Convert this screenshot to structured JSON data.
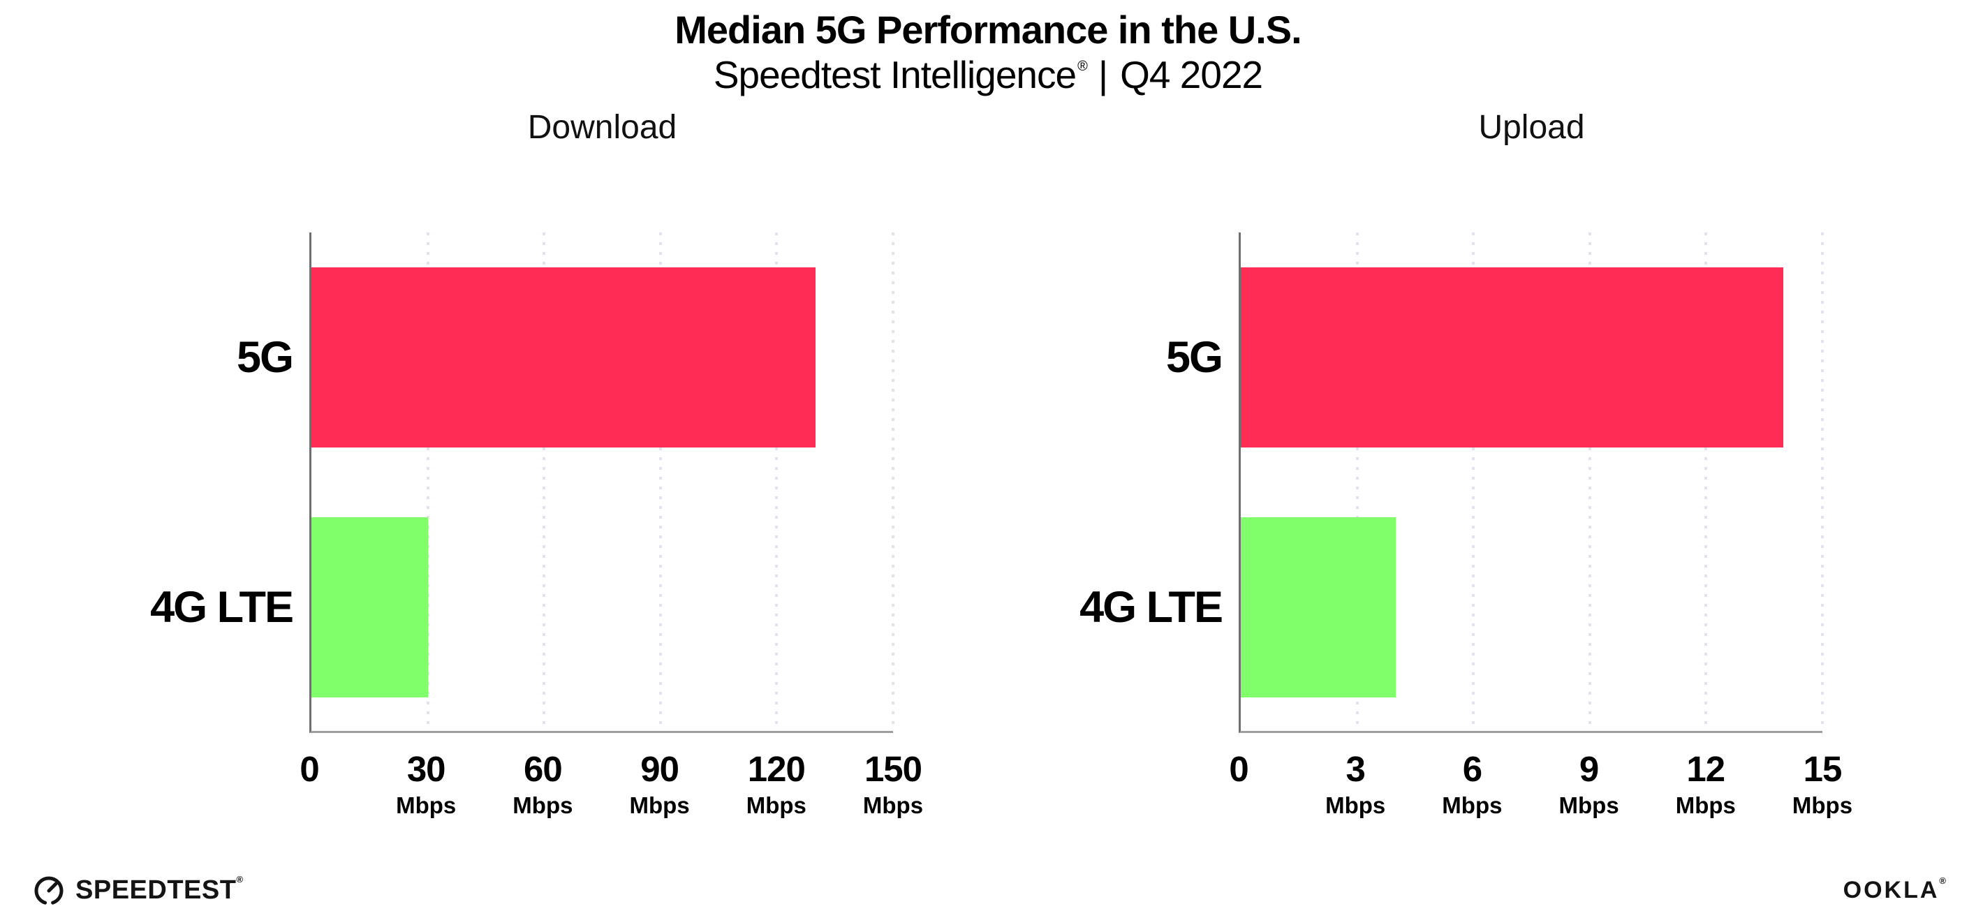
{
  "header": {
    "title": "Median 5G Performance in the U.S.",
    "subtitle_brand": "Speedtest Intelligence",
    "subtitle_reg": "®",
    "subtitle_separator": "|",
    "subtitle_period": "Q4 2022"
  },
  "chart_data": [
    {
      "type": "bar",
      "orientation": "horizontal",
      "title": "Download",
      "categories": [
        "5G",
        "4G LTE"
      ],
      "values": [
        130,
        30
      ],
      "unit": "Mbps",
      "bar_colors": [
        "#ff2d55",
        "#80ff6b"
      ],
      "xlim": [
        0,
        150
      ],
      "x_ticks": [
        0,
        30,
        60,
        90,
        120,
        150
      ],
      "grid": "dotted-vertical-gridlines",
      "legend": "none"
    },
    {
      "type": "bar",
      "orientation": "horizontal",
      "title": "Upload",
      "categories": [
        "5G",
        "4G LTE"
      ],
      "values": [
        14,
        4
      ],
      "unit": "Mbps",
      "bar_colors": [
        "#ff2d55",
        "#80ff6b"
      ],
      "xlim": [
        0,
        15
      ],
      "x_ticks": [
        0,
        3,
        6,
        9,
        12,
        15
      ],
      "grid": "dotted-vertical-gridlines",
      "legend": "none"
    }
  ],
  "colors": {
    "bar_5g": "#ff2d55",
    "bar_4g_lte": "#80ff6b",
    "y_axis_line": "#6f6f6f",
    "x_axis_line": "#9e9e9e",
    "gridline_dots": "#e2e2ee",
    "text": "#000000"
  },
  "footer": {
    "speedtest_logo_text": "SPEEDTEST",
    "speedtest_reg": "®",
    "ookla_logo_text": "OOKLA",
    "ookla_reg": "®"
  }
}
